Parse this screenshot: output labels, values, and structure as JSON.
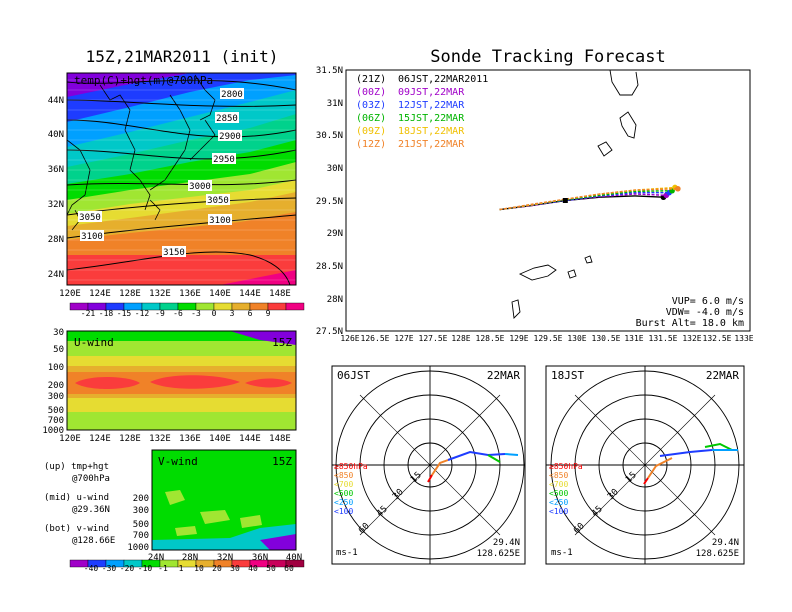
{
  "left": {
    "title": "15Z,21MAR2011 (init)",
    "panel_label": "temp(C)+hgt(m)@700hPa",
    "lat_ticks": [
      "44N",
      "40N",
      "36N",
      "32N",
      "28N",
      "24N"
    ],
    "lon_ticks": [
      "120E",
      "124E",
      "128E",
      "132E",
      "136E",
      "140E",
      "144E",
      "148E"
    ],
    "contours": [
      "2800",
      "2850",
      "2900",
      "2950",
      "3000",
      "3050",
      "3100",
      "3150",
      "3050",
      "3100"
    ],
    "temp_colorbar": [
      "-21",
      "-18",
      "-15",
      "-12",
      "-9",
      "-6",
      "-3",
      "0",
      "3",
      "6",
      "9"
    ],
    "temp_colors": [
      "#a000c8",
      "#8200dc",
      "#1e3cff",
      "#00a0ff",
      "#00c8c8",
      "#00d28c",
      "#00dc00",
      "#a0e632",
      "#e6dc32",
      "#e6af2d",
      "#f08228",
      "#fa3c3c",
      "#f00082"
    ],
    "uwind": {
      "label": "U-wind",
      "time": "15Z",
      "levels": [
        "30",
        "50",
        "100",
        "200",
        "300",
        "500",
        "700",
        "1000"
      ],
      "lon_ticks": [
        "120E",
        "124E",
        "128E",
        "132E",
        "136E",
        "140E",
        "144E",
        "148E"
      ]
    },
    "vwind": {
      "label": "V-wind",
      "time": "15Z",
      "levels": [
        "200",
        "300",
        "500",
        "700",
        "1000"
      ],
      "lat_ticks": [
        "24N",
        "28N",
        "32N",
        "36N",
        "40N"
      ]
    },
    "legend_notes": [
      "(up) tmp+hgt",
      "@700hPa",
      "(mid) u-wind",
      "@29.36N",
      "(bot) v-wind",
      "@128.66E"
    ],
    "wind_colorbar": [
      "-40",
      "-30",
      "-20",
      "-10",
      "-1",
      "1",
      "10",
      "20",
      "30",
      "40",
      "50",
      "60"
    ],
    "wind_colors": [
      "#a000c8",
      "#1e3cff",
      "#00a0ff",
      "#00c8c8",
      "#00dc00",
      "#a0e632",
      "#e6dc32",
      "#e6af2d",
      "#f08228",
      "#fa3c3c",
      "#f00082",
      "#c8005a",
      "#a00040"
    ]
  },
  "tracking": {
    "title": "Sonde Tracking Forecast",
    "lat_ticks": [
      "31.5N",
      "31N",
      "30.5N",
      "30N",
      "29.5N",
      "29N",
      "28.5N",
      "28N",
      "27.5N"
    ],
    "lon_ticks": [
      "126E",
      "126.5E",
      "127E",
      "127.5E",
      "128E",
      "128.5E",
      "129E",
      "129.5E",
      "130E",
      "130.5E",
      "131E",
      "131.5E",
      "132E",
      "132.5E",
      "133E"
    ],
    "legend": [
      {
        "run": "(21Z)",
        "time": "06JST,22MAR2011",
        "color": "#000000"
      },
      {
        "run": "(00Z)",
        "time": "09JST,22MAR",
        "color": "#a000c8"
      },
      {
        "run": "(03Z)",
        "time": "12JST,22MAR",
        "color": "#1e3cff"
      },
      {
        "run": "(06Z)",
        "time": "15JST,22MAR",
        "color": "#00b400"
      },
      {
        "run": "(09Z)",
        "time": "18JST,22MAR",
        "color": "#f0c000"
      },
      {
        "run": "(12Z)",
        "time": "21JST,22MAR",
        "color": "#f08228"
      }
    ],
    "params": [
      "VUP= 6.0 m/s",
      "VDW= -4.0 m/s",
      "Burst Alt= 18.0 km"
    ]
  },
  "chart_data": [
    {
      "type": "line",
      "title": "Sonde Tracking Forecast",
      "xlim": [
        126,
        133
      ],
      "ylim": [
        27.5,
        31.5
      ],
      "series": [
        {
          "name": "(21Z) 06JST,22MAR2011",
          "x": [
            128.66,
            129.2,
            129.8,
            130.4,
            131.0,
            131.5
          ],
          "y": [
            29.36,
            29.42,
            29.5,
            29.55,
            29.57,
            29.55
          ]
        },
        {
          "name": "(00Z) 09JST,22MAR",
          "x": [
            128.66,
            129.2,
            129.8,
            130.4,
            131.0,
            131.55
          ],
          "y": [
            29.36,
            29.42,
            29.5,
            29.56,
            29.6,
            29.58
          ]
        },
        {
          "name": "(03Z) 12JST,22MAR",
          "x": [
            128.66,
            129.2,
            129.8,
            130.4,
            131.0,
            131.6
          ],
          "y": [
            29.36,
            29.43,
            29.5,
            29.57,
            29.62,
            29.62
          ]
        },
        {
          "name": "(06Z) 15JST,22MAR",
          "x": [
            128.66,
            129.2,
            129.8,
            130.4,
            131.0,
            131.65
          ],
          "y": [
            29.36,
            29.43,
            29.51,
            29.58,
            29.64,
            29.65
          ]
        },
        {
          "name": "(09Z) 18JST,22MAR",
          "x": [
            128.66,
            129.2,
            129.8,
            130.4,
            131.0,
            131.7
          ],
          "y": [
            29.36,
            29.43,
            29.52,
            29.6,
            29.66,
            29.7
          ]
        },
        {
          "name": "(12Z) 21JST,22MAR",
          "x": [
            128.66,
            129.2,
            129.8,
            130.4,
            131.0,
            131.75
          ],
          "y": [
            29.36,
            29.44,
            29.52,
            29.6,
            29.66,
            29.68
          ]
        }
      ]
    }
  ],
  "hodographs": [
    {
      "left_label": "06JST",
      "right_label": "22MAR",
      "ring_labels": [
        "15",
        "30",
        "45",
        "60"
      ],
      "levels": [
        "≥850hPa",
        "<850",
        "<700",
        "<500",
        "<250",
        "<100"
      ],
      "level_colors": [
        "#fa0000",
        "#f08228",
        "#e6dc32",
        "#00c800",
        "#00a0ff",
        "#1e3cff"
      ],
      "unit": "ms-1",
      "lat": "29.4N",
      "lon": "128.625E"
    },
    {
      "left_label": "18JST",
      "right_label": "22MAR",
      "ring_labels": [
        "15",
        "30",
        "45",
        "60"
      ],
      "levels": [
        "≥850hPa",
        "<850",
        "<700",
        "<500",
        "<250",
        "<100"
      ],
      "level_colors": [
        "#fa0000",
        "#f08228",
        "#e6dc32",
        "#00c800",
        "#00a0ff",
        "#1e3cff"
      ],
      "unit": "ms-1",
      "lat": "29.4N",
      "lon": "128.625E"
    }
  ]
}
